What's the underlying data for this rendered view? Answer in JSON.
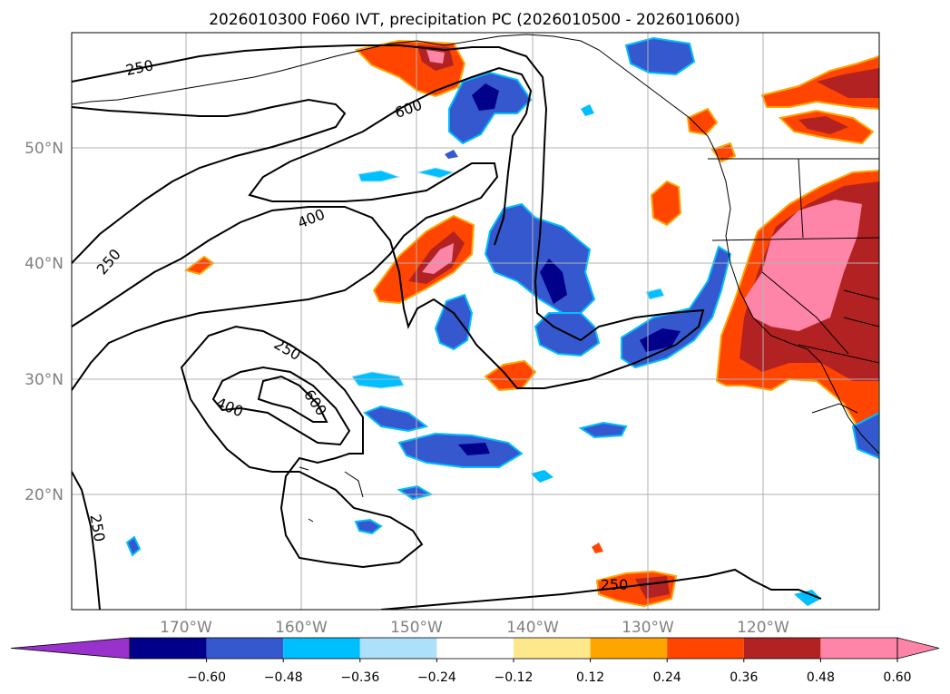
{
  "title": "2026010300 F060 IVT, precipitation PC (2026010500 - 2026010600)",
  "map": {
    "lat_labels": [
      "50°N",
      "40°N",
      "30°N",
      "20°N"
    ],
    "lon_labels": [
      "170°W",
      "160°W",
      "150°W",
      "140°W",
      "130°W",
      "120°W"
    ],
    "contour_labels": [
      "250",
      "600",
      "400",
      "250",
      "250",
      "400",
      "600",
      "250",
      "250"
    ],
    "contour_levels": [
      250,
      400,
      600
    ]
  },
  "colorbar": {
    "ticks": [
      "−0.60",
      "−0.48",
      "−0.36",
      "−0.24",
      "−0.12",
      "0.12",
      "0.24",
      "0.36",
      "0.48",
      "0.60"
    ],
    "colors": [
      "#9932CC",
      "#00008B",
      "#3558CF",
      "#00BFFF",
      "#ADE0FA",
      "#FFFFFF",
      "#FFE88C",
      "#FFA500",
      "#FF4500",
      "#B22222",
      "#FF85A8",
      "#FF85A8"
    ]
  }
}
